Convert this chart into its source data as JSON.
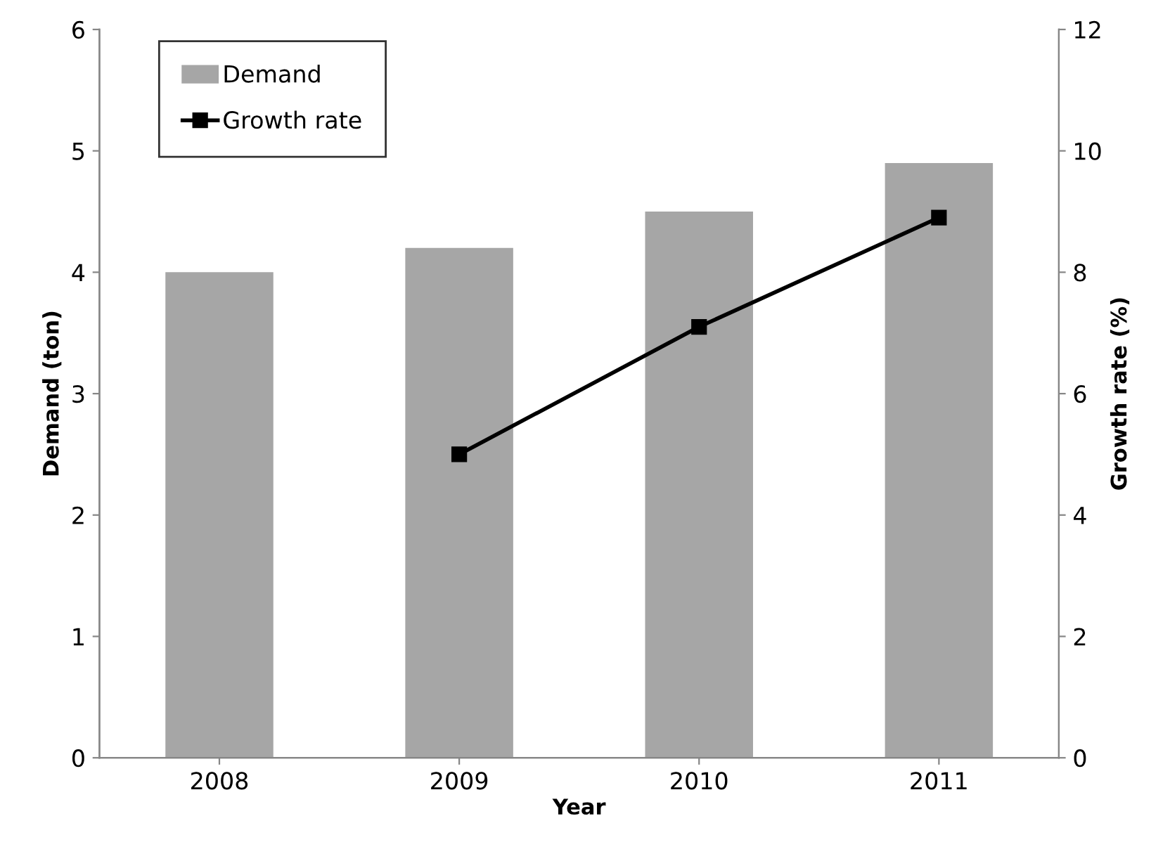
{
  "chart_data": {
    "type": "bar",
    "xlabel": "Year",
    "ylabel": "Demand (ton)",
    "y2label": "Growth rate (%)",
    "categories": [
      "2008",
      "2009",
      "2010",
      "2011"
    ],
    "series": [
      {
        "name": "Demand",
        "color": "#a6a6a6",
        "values": [
          4.0,
          4.2,
          4.5,
          4.9
        ]
      },
      {
        "name": "Growth rate",
        "type": "line",
        "axis": "y2",
        "color": "#000000",
        "values": [
          null,
          5.0,
          7.1,
          8.9
        ],
        "marker": "square",
        "line_style": "solid"
      }
    ],
    "ylim": [
      0,
      6
    ],
    "yticks": [
      0,
      1,
      2,
      3,
      4,
      5,
      6
    ],
    "y2lim": [
      0,
      12
    ],
    "y2ticks": [
      0,
      2,
      4,
      6,
      8,
      10,
      12
    ],
    "grid": false,
    "legend": "top left"
  }
}
